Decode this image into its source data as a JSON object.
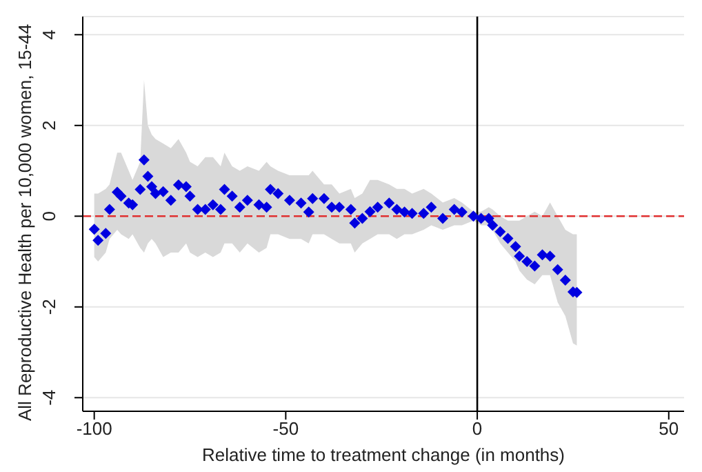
{
  "chart_data": {
    "type": "scatter",
    "xlabel": "Relative time to treatment change (in months)",
    "ylabel": "All Reproductive Health per 10,000 women, 15-44",
    "xlim": [
      -103,
      54
    ],
    "xticks": [
      -100,
      -50,
      0,
      50
    ],
    "ylim": [
      -4.3,
      4.4
    ],
    "yticks": [
      -4,
      -2,
      0,
      2,
      4
    ],
    "grid": "y",
    "marker": "diamond",
    "ref_lines": [
      {
        "axis": "y",
        "value": 0,
        "color": "#e03030",
        "line_style": "dashed"
      },
      {
        "axis": "x",
        "value": 0,
        "color": "#000000",
        "line_style": "solid"
      }
    ],
    "series": [
      {
        "color": "#0000e0",
        "x": [
          -100,
          -99,
          -97,
          -96,
          -94,
          -93,
          -91,
          -90,
          -88,
          -87,
          -86,
          -85,
          -84,
          -82,
          -80,
          -78,
          -76,
          -75,
          -73,
          -71,
          -69,
          -67,
          -66,
          -64,
          -62,
          -60,
          -57,
          -55,
          -54,
          -52,
          -49,
          -46,
          -44,
          -43,
          -40,
          -38,
          -36,
          -33,
          -32,
          -30,
          -28,
          -26,
          -23,
          -21,
          -19,
          -17,
          -14,
          -12,
          -9,
          -6,
          -4,
          -1,
          1,
          3,
          4,
          6,
          8,
          10,
          11,
          13,
          15,
          17,
          19,
          21,
          23,
          25,
          26
        ],
        "values": [
          -0.29,
          -0.53,
          -0.38,
          0.15,
          0.53,
          0.44,
          0.29,
          0.25,
          0.59,
          1.24,
          0.88,
          0.65,
          0.5,
          0.54,
          0.35,
          0.69,
          0.65,
          0.44,
          0.15,
          0.15,
          0.25,
          0.15,
          0.59,
          0.44,
          0.2,
          0.35,
          0.25,
          0.2,
          0.59,
          0.5,
          0.35,
          0.29,
          0.09,
          0.39,
          0.39,
          0.2,
          0.2,
          0.15,
          -0.15,
          -0.05,
          0.1,
          0.2,
          0.29,
          0.15,
          0.09,
          0.06,
          0.06,
          0.2,
          -0.05,
          0.15,
          0.09,
          0.0,
          -0.05,
          -0.05,
          -0.2,
          -0.34,
          -0.49,
          -0.67,
          -0.88,
          -1.0,
          -1.1,
          -0.85,
          -0.88,
          -1.18,
          -1.41,
          -1.67,
          -1.68
        ],
        "lower": [
          -0.9,
          -1.0,
          -0.8,
          -0.5,
          -0.3,
          -0.4,
          -0.5,
          -0.4,
          -0.7,
          -0.8,
          -0.6,
          -0.5,
          -0.6,
          -0.9,
          -0.8,
          -0.8,
          -0.6,
          -0.8,
          -0.9,
          -0.8,
          -0.9,
          -0.8,
          -0.6,
          -0.6,
          -0.8,
          -0.6,
          -0.8,
          -0.7,
          -0.4,
          -0.4,
          -0.5,
          -0.5,
          -0.6,
          -0.4,
          -0.4,
          -0.5,
          -0.6,
          -0.6,
          -0.8,
          -0.6,
          -0.5,
          -0.4,
          -0.4,
          -0.5,
          -0.4,
          -0.4,
          -0.3,
          -0.2,
          -0.3,
          -0.2,
          -0.2,
          -0.1,
          -0.2,
          -0.2,
          -0.3,
          -0.6,
          -0.8,
          -1.0,
          -1.2,
          -1.4,
          -1.5,
          -1.3,
          -1.3,
          -1.9,
          -2.2,
          -2.8,
          -2.85
        ],
        "upper": [
          0.5,
          0.5,
          0.6,
          0.7,
          1.4,
          1.4,
          1.0,
          0.8,
          1.2,
          3.0,
          2.0,
          1.8,
          1.7,
          1.6,
          1.5,
          1.7,
          1.4,
          1.2,
          1.1,
          1.3,
          1.3,
          1.1,
          1.4,
          1.1,
          1.0,
          1.1,
          1.0,
          1.2,
          1.1,
          1.0,
          0.9,
          0.9,
          0.9,
          1.0,
          0.7,
          0.7,
          0.5,
          0.6,
          0.4,
          0.5,
          0.8,
          0.8,
          0.7,
          0.6,
          0.6,
          0.5,
          0.6,
          0.5,
          0.3,
          0.4,
          0.3,
          0.1,
          0.1,
          0.2,
          0.15,
          0.0,
          -0.1,
          -0.1,
          -0.1,
          0.0,
          0.1,
          0.0,
          0.3,
          0.0,
          -0.3,
          -0.4,
          -0.4
        ]
      }
    ]
  }
}
